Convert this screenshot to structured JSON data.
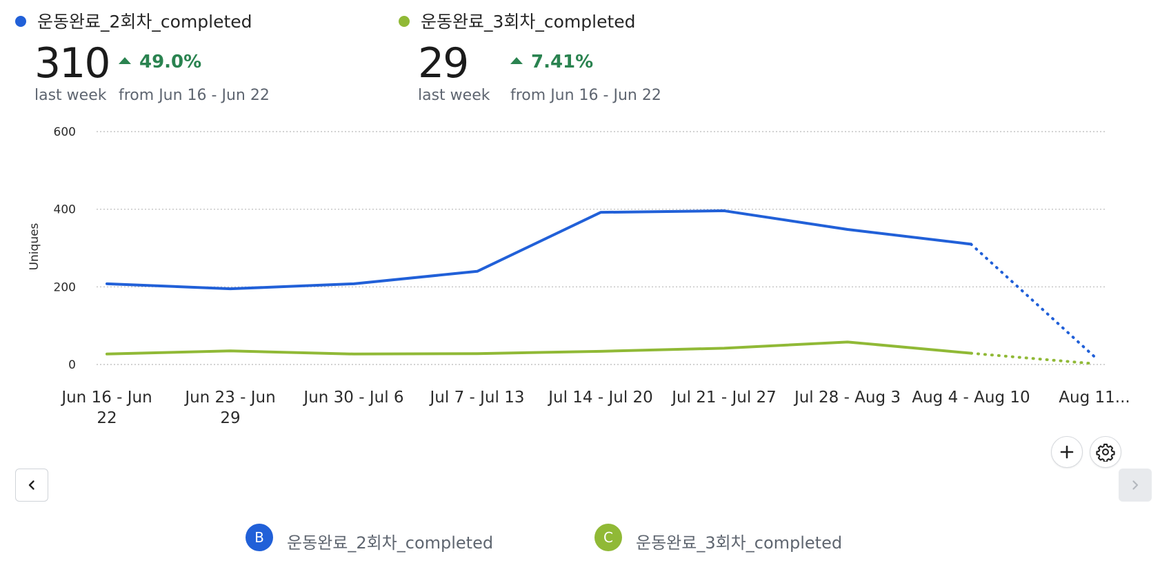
{
  "colors": {
    "blue": "#2160d8",
    "green": "#90b936",
    "positive": "#2a8350",
    "grid": "#b8b8b8"
  },
  "metrics": [
    {
      "name": "운동완료_2회차_completed",
      "value": "310",
      "value_caption": "last week",
      "change": "49.0%",
      "change_caption": "from Jun 16 - Jun 22",
      "color": "#2160d8"
    },
    {
      "name": "운동완료_3회차_completed",
      "value": "29",
      "value_caption": "last week",
      "change": "7.41%",
      "change_caption": "from Jun 16 - Jun 22",
      "color": "#90b936"
    }
  ],
  "chart_data": {
    "type": "line",
    "ylabel": "Uniques",
    "xlabel": "",
    "ylim": [
      0,
      600
    ],
    "yticks": [
      0,
      200,
      400,
      600
    ],
    "grid": true,
    "categories": [
      "Jun 16 - Jun 22",
      "Jun 23 - Jun 29",
      "Jun 30 - Jul 6",
      "Jul 7 - Jul 13",
      "Jul 14 - Jul 20",
      "Jul 21 - Jul 27",
      "Jul 28 - Aug 3",
      "Aug 4 - Aug 10",
      "Aug 11…"
    ],
    "category_lines": [
      [
        "Jun 16 - Jun",
        "22"
      ],
      [
        "Jun 23 - Jun",
        "29"
      ],
      [
        "Jun 30 - Jul 6"
      ],
      [
        "Jul 7 - Jul 13"
      ],
      [
        "Jul 14 - Jul 20"
      ],
      [
        "Jul 21 - Jul 27"
      ],
      [
        "Jul 28 - Aug 3"
      ],
      [
        "Aug 4 - Aug 10"
      ],
      [
        "Aug 11..."
      ]
    ],
    "series": [
      {
        "name": "운동완료_2회차_completed",
        "badge": "B",
        "color": "#2160d8",
        "values": [
          208,
          195,
          208,
          240,
          392,
          396,
          348,
          310,
          20
        ]
      },
      {
        "name": "운동완료_3회차_completed",
        "badge": "C",
        "color": "#90b936",
        "values": [
          27,
          35,
          27,
          28,
          34,
          42,
          58,
          29,
          2
        ]
      }
    ],
    "incomplete_last_period": true
  },
  "controls": {
    "add_icon": "plus-icon",
    "settings_icon": "gear-icon",
    "prev_icon": "chevron-left-icon",
    "next_icon": "chevron-right-icon"
  }
}
